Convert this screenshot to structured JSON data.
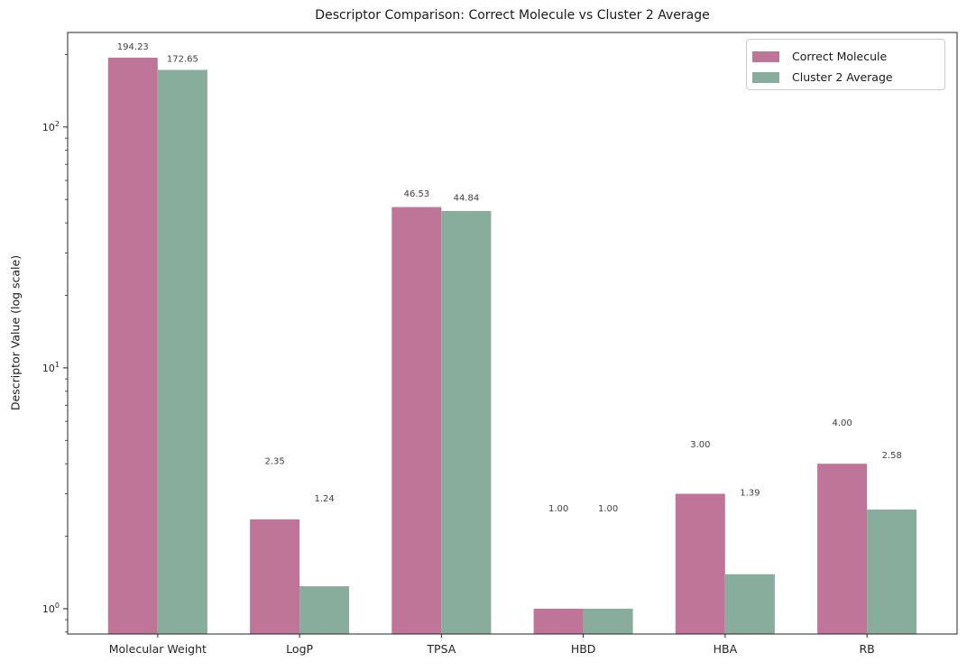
{
  "title": "Descriptor Comparison: Correct Molecule vs Cluster 2 Average",
  "chart_data": {
    "type": "bar",
    "title": "Descriptor Comparison: Correct Molecule vs Cluster 2 Average",
    "xlabel": "",
    "ylabel": "Descriptor Value (log scale)",
    "categories": [
      "Molecular Weight",
      "LogP",
      "TPSA",
      "HBD",
      "HBA",
      "RB"
    ],
    "series": [
      {
        "name": "Correct Molecule",
        "color": "#BE7598",
        "values": [
          194.23,
          2.35,
          46.53,
          1.0,
          3.0,
          4.0
        ]
      },
      {
        "name": "Cluster 2 Average",
        "color": "#89AD9C",
        "values": [
          172.65,
          1.24,
          44.84,
          1.0,
          1.39,
          2.58
        ]
      }
    ],
    "value_label_decimals": 2,
    "yscale": "log",
    "ylim": [
      0.785,
      247
    ],
    "ytick_exponents": [
      0,
      1,
      2
    ],
    "grid": false,
    "legend_position": "upper right"
  },
  "colors": {
    "spine": "#262626",
    "tick_label": "#262626",
    "value_label": "#3f3f3f",
    "legend_border": "#cccccc"
  }
}
